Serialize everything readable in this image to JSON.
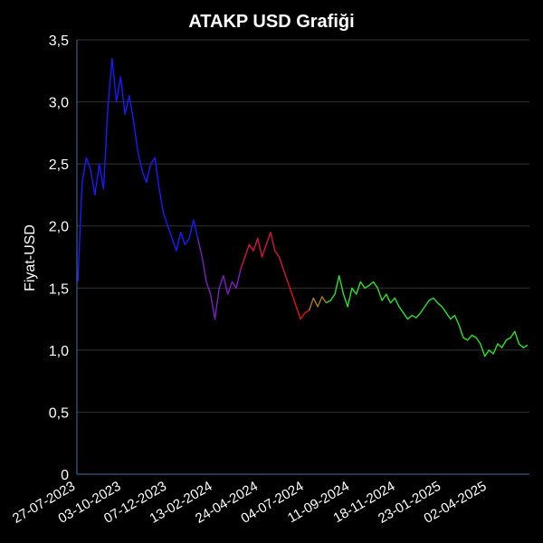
{
  "chart_data": {
    "type": "line",
    "title": "ATAKP USD Grafiği",
    "xlabel": "",
    "ylabel": "Fiyat-USD",
    "ylim": [
      0,
      3.5
    ],
    "yticks": [
      "0",
      "0,5",
      "1,0",
      "1,5",
      "2,0",
      "2,5",
      "3,0",
      "3,5"
    ],
    "yvalues": [
      0,
      0.5,
      1.0,
      1.5,
      2.0,
      2.5,
      3.0,
      3.5
    ],
    "xtick_labels": [
      "27-07-2023",
      "03-10-2023",
      "07-12-2023",
      "13-02-2024",
      "24-04-2024",
      "04-07-2024",
      "11-09-2024",
      "18-11-2024",
      "23-01-2025",
      "02-04-2025"
    ],
    "grid": true,
    "series": [
      {
        "color": "#1a1aff",
        "values": [
          1.55,
          2.35,
          2.55,
          2.45,
          2.25,
          2.5,
          2.3,
          2.95,
          3.35,
          3.0,
          3.2,
          2.9,
          3.05,
          2.85,
          2.6,
          2.45,
          2.35,
          2.5,
          2.55,
          2.3,
          2.1,
          2.0,
          1.9,
          1.8,
          1.95,
          1.85,
          1.9,
          2.05,
          1.9
        ]
      },
      {
        "color": "#7b1fbf",
        "values": [
          1.9,
          1.75,
          1.55,
          1.45,
          1.25,
          1.5,
          1.6,
          1.45,
          1.55,
          1.5,
          1.65
        ]
      },
      {
        "color": "#d4144a",
        "values": [
          1.65,
          1.75,
          1.85,
          1.8,
          1.9,
          1.75,
          1.85,
          1.95,
          1.8,
          1.75,
          1.65,
          1.55
        ]
      },
      {
        "color": "#e01010",
        "values": [
          1.55,
          1.45,
          1.35,
          1.25,
          1.3,
          1.32
        ]
      },
      {
        "color": "#b07a1a",
        "values": [
          1.32,
          1.42,
          1.35,
          1.43,
          1.38
        ]
      },
      {
        "color": "#2ee02e",
        "values": [
          1.38,
          1.4,
          1.45,
          1.6,
          1.45,
          1.35,
          1.5,
          1.45,
          1.55,
          1.5,
          1.52,
          1.55,
          1.5,
          1.4,
          1.45,
          1.38,
          1.42,
          1.35,
          1.3,
          1.25,
          1.28,
          1.26,
          1.3,
          1.35,
          1.4,
          1.42,
          1.38,
          1.35,
          1.3,
          1.25,
          1.28,
          1.2,
          1.1,
          1.08,
          1.12,
          1.1,
          1.05,
          0.95,
          1.0,
          0.97,
          1.05,
          1.02,
          1.08,
          1.1,
          1.15,
          1.05,
          1.02,
          1.04
        ]
      }
    ]
  }
}
